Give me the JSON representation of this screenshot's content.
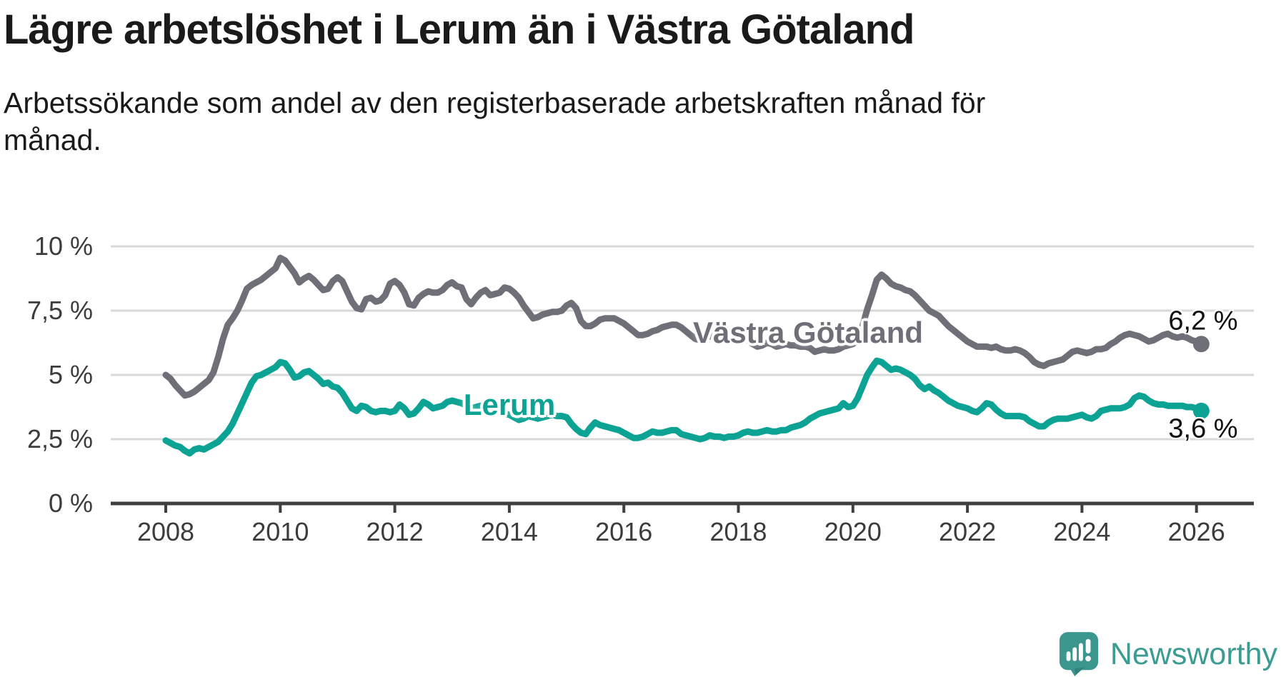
{
  "header": {
    "title": "Lägre arbetslöshet i Lerum än i Västra Götaland",
    "subtitle": "Arbetssökande som andel av den registerbaserade arbetskraften månad för månad."
  },
  "chart_data": {
    "type": "line",
    "title": "Lägre arbetslöshet i Lerum än i Västra Götaland",
    "subtitle": "Arbetssökande som andel av den registerbaserade arbetskraften månad för månad.",
    "grid": "horizontal-only",
    "legend_position": "inline-labels-on-lines",
    "x_axis": {
      "tick_labels": [
        "2008",
        "2010",
        "2012",
        "2014",
        "2016",
        "2018",
        "2020",
        "2022",
        "2024",
        "2026"
      ],
      "tick_values": [
        2008,
        2010,
        2012,
        2014,
        2016,
        2018,
        2020,
        2022,
        2024,
        2026
      ],
      "range_years": [
        2008.0,
        2026.083
      ]
    },
    "y_axis": {
      "tick_labels": [
        "0 %",
        "2,5 %",
        "5 %",
        "7,5 %",
        "10 %"
      ],
      "tick_values": [
        0,
        2.5,
        5,
        7.5,
        10
      ],
      "ylim": [
        0,
        10
      ],
      "unit": "%"
    },
    "colors": {
      "vastra_gotaland": "#6F6F78",
      "lerum": "#0CA294",
      "gridline": "#D8D8D8",
      "axis": "#3F3F3F",
      "text": "#1A1A1A",
      "tick_text": "#3C3C3C"
    },
    "series": [
      {
        "name": "Västra Götaland",
        "color": "#6F6F78",
        "end_label": "6,2 %",
        "end_value": 6.2,
        "start_year": 2008,
        "frequency": "monthly",
        "values": [
          5.0,
          4.85,
          4.6,
          4.4,
          4.2,
          4.25,
          4.35,
          4.5,
          4.65,
          4.8,
          5.1,
          5.7,
          6.4,
          6.95,
          7.2,
          7.5,
          7.9,
          8.35,
          8.5,
          8.6,
          8.7,
          8.85,
          9.0,
          9.15,
          9.55,
          9.45,
          9.2,
          8.95,
          8.6,
          8.75,
          8.85,
          8.7,
          8.5,
          8.3,
          8.35,
          8.65,
          8.8,
          8.65,
          8.25,
          7.85,
          7.6,
          7.55,
          7.95,
          8.0,
          7.85,
          7.9,
          8.1,
          8.55,
          8.65,
          8.5,
          8.2,
          7.75,
          7.7,
          8.0,
          8.15,
          8.25,
          8.2,
          8.2,
          8.3,
          8.5,
          8.6,
          8.45,
          8.4,
          7.95,
          7.75,
          8.0,
          8.2,
          8.3,
          8.1,
          8.15,
          8.2,
          8.4,
          8.35,
          8.2,
          8.0,
          7.7,
          7.45,
          7.2,
          7.25,
          7.35,
          7.4,
          7.45,
          7.45,
          7.5,
          7.7,
          7.8,
          7.6,
          7.1,
          6.9,
          6.9,
          7.0,
          7.15,
          7.2,
          7.2,
          7.2,
          7.1,
          7.0,
          6.85,
          6.7,
          6.55,
          6.55,
          6.6,
          6.7,
          6.75,
          6.85,
          6.9,
          6.95,
          6.95,
          6.85,
          6.7,
          6.55,
          6.4,
          6.35,
          6.45,
          6.5,
          6.5,
          6.45,
          6.4,
          6.45,
          6.5,
          6.5,
          6.45,
          6.35,
          6.2,
          6.1,
          6.15,
          6.25,
          6.2,
          6.1,
          6.15,
          6.2,
          6.15,
          6.15,
          6.1,
          6.1,
          6.05,
          5.9,
          5.95,
          6.0,
          5.95,
          5.95,
          6.0,
          6.1,
          6.15,
          6.2,
          6.4,
          6.9,
          7.55,
          8.1,
          8.7,
          8.9,
          8.75,
          8.55,
          8.45,
          8.4,
          8.3,
          8.25,
          8.1,
          7.9,
          7.7,
          7.5,
          7.4,
          7.3,
          7.1,
          6.9,
          6.75,
          6.6,
          6.45,
          6.3,
          6.2,
          6.1,
          6.1,
          6.1,
          6.05,
          6.1,
          6.0,
          5.95,
          5.95,
          6.0,
          5.95,
          5.85,
          5.7,
          5.5,
          5.4,
          5.35,
          5.45,
          5.5,
          5.55,
          5.6,
          5.75,
          5.9,
          5.95,
          5.9,
          5.85,
          5.9,
          6.0,
          6.0,
          6.05,
          6.2,
          6.3,
          6.45,
          6.55,
          6.6,
          6.55,
          6.5,
          6.4,
          6.3,
          6.35,
          6.45,
          6.55,
          6.6,
          6.5,
          6.45,
          6.5,
          6.45,
          6.35,
          6.3,
          6.2
        ]
      },
      {
        "name": "Lerum",
        "color": "#0CA294",
        "end_label": "3,6 %",
        "end_value": 3.6,
        "start_year": 2008,
        "frequency": "monthly",
        "values": [
          2.45,
          2.35,
          2.25,
          2.2,
          2.05,
          1.95,
          2.1,
          2.15,
          2.1,
          2.2,
          2.3,
          2.4,
          2.6,
          2.8,
          3.1,
          3.5,
          3.9,
          4.3,
          4.7,
          4.95,
          5.0,
          5.1,
          5.2,
          5.3,
          5.5,
          5.45,
          5.2,
          4.9,
          4.95,
          5.1,
          5.15,
          5.0,
          4.85,
          4.65,
          4.7,
          4.55,
          4.5,
          4.3,
          4.0,
          3.7,
          3.6,
          3.8,
          3.75,
          3.6,
          3.55,
          3.6,
          3.6,
          3.55,
          3.6,
          3.85,
          3.7,
          3.45,
          3.5,
          3.7,
          3.95,
          3.85,
          3.7,
          3.75,
          3.8,
          3.95,
          4.0,
          3.95,
          3.9,
          3.8,
          3.7,
          3.75,
          3.8,
          3.75,
          3.7,
          3.6,
          3.55,
          3.5,
          3.45,
          3.35,
          3.25,
          3.3,
          3.4,
          3.35,
          3.3,
          3.35,
          3.4,
          3.45,
          3.4,
          3.4,
          3.35,
          3.1,
          2.9,
          2.75,
          2.7,
          2.95,
          3.15,
          3.05,
          3.0,
          2.95,
          2.9,
          2.85,
          2.75,
          2.65,
          2.55,
          2.55,
          2.6,
          2.7,
          2.8,
          2.75,
          2.75,
          2.8,
          2.85,
          2.85,
          2.7,
          2.65,
          2.6,
          2.55,
          2.5,
          2.55,
          2.65,
          2.6,
          2.6,
          2.55,
          2.6,
          2.6,
          2.65,
          2.75,
          2.8,
          2.75,
          2.75,
          2.8,
          2.85,
          2.8,
          2.8,
          2.85,
          2.85,
          2.95,
          3.0,
          3.05,
          3.15,
          3.3,
          3.4,
          3.5,
          3.55,
          3.6,
          3.65,
          3.7,
          3.9,
          3.75,
          3.8,
          4.1,
          4.55,
          5.0,
          5.3,
          5.55,
          5.5,
          5.35,
          5.2,
          5.25,
          5.2,
          5.1,
          5.0,
          4.85,
          4.6,
          4.45,
          4.55,
          4.4,
          4.3,
          4.15,
          4.0,
          3.9,
          3.8,
          3.75,
          3.7,
          3.6,
          3.55,
          3.7,
          3.9,
          3.85,
          3.65,
          3.5,
          3.4,
          3.4,
          3.4,
          3.4,
          3.35,
          3.2,
          3.1,
          3.0,
          3.0,
          3.15,
          3.25,
          3.3,
          3.3,
          3.3,
          3.35,
          3.4,
          3.45,
          3.35,
          3.3,
          3.4,
          3.6,
          3.65,
          3.7,
          3.7,
          3.7,
          3.75,
          3.85,
          4.1,
          4.2,
          4.15,
          4.0,
          3.9,
          3.85,
          3.85,
          3.8,
          3.8,
          3.8,
          3.8,
          3.75,
          3.75,
          3.7,
          3.6
        ]
      }
    ]
  },
  "footer": {
    "brand": "Newsworthy",
    "brand_color": "#3C9B93",
    "logo_icon": "newsworthy-speech-bubble-bar-chart-icon"
  }
}
